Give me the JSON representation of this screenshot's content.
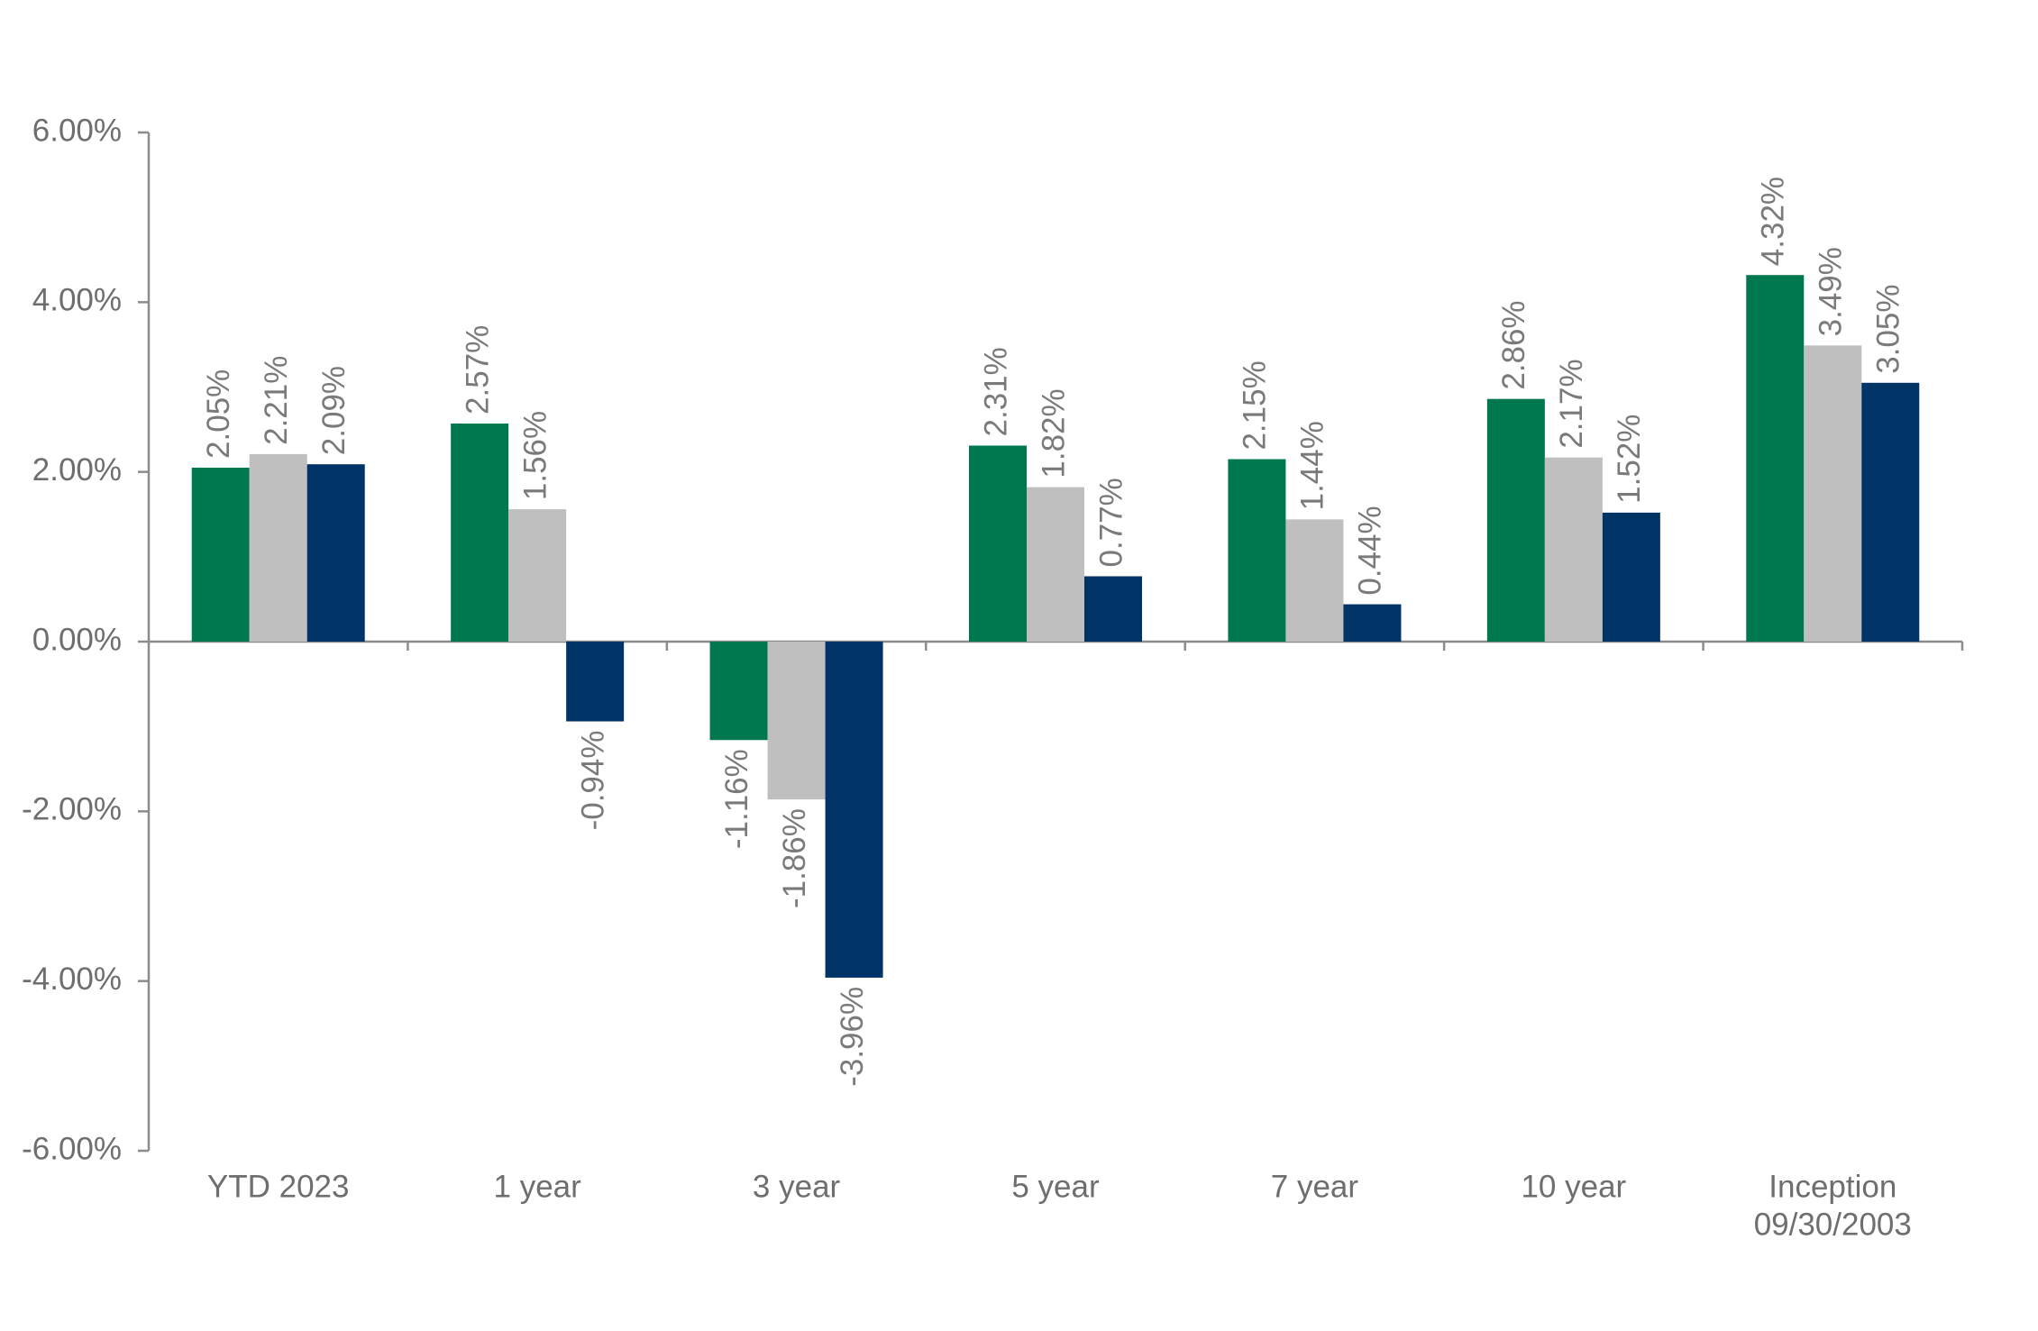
{
  "chart_data": {
    "type": "bar",
    "categories": [
      [
        "YTD 2023"
      ],
      [
        "1 year"
      ],
      [
        "3 year"
      ],
      [
        "5 year"
      ],
      [
        "7 year"
      ],
      [
        "10 year"
      ],
      [
        "Inception",
        "09/30/2003"
      ]
    ],
    "series": [
      {
        "values": [
          2.05,
          2.57,
          -1.16,
          2.31,
          2.15,
          2.86,
          4.32
        ],
        "color": "#00784f"
      },
      {
        "values": [
          2.21,
          1.56,
          -1.86,
          1.82,
          1.44,
          2.17,
          3.49
        ],
        "color": "#bfbfbf"
      },
      {
        "values": [
          2.09,
          -0.94,
          -3.96,
          0.77,
          0.44,
          1.52,
          3.05
        ],
        "color": "#003366"
      }
    ],
    "ylim": [
      -6,
      6
    ],
    "yticks": [
      6,
      4,
      2,
      0,
      -2,
      -4,
      -6
    ],
    "ytick_labels": [
      "6.00%",
      "4.00%",
      "2.00%",
      "0.00%",
      "-2.00%",
      "-4.00%",
      "-6.00%"
    ],
    "value_suffix": "%",
    "value_decimals": 2,
    "title": "",
    "xlabel": "",
    "ylabel": "",
    "grid": false,
    "legend": "none"
  }
}
